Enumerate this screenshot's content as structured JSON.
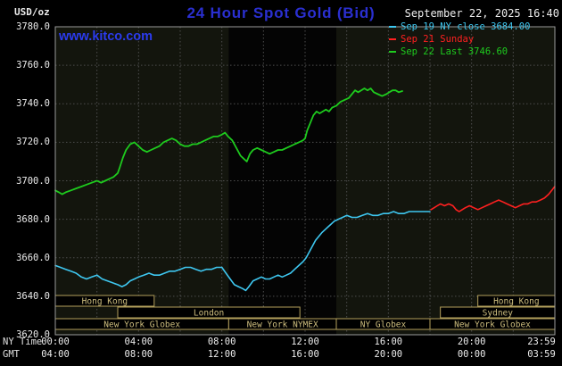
{
  "header": {
    "units_label": "USD/oz",
    "title": "24 Hour Spot Gold (Bid)",
    "title_color": "#2a2fd0",
    "datetime": "September 22, 2025 16:40",
    "watermark": "www.kitco.com",
    "watermark_color": "#2b3bee",
    "legend": [
      {
        "label": "Sep 19 NY close 3684.00",
        "color": "#3ec7f0"
      },
      {
        "label": "Sep 21 Sunday",
        "color": "#ff2020"
      },
      {
        "label": "Sep 22 Last 3746.60",
        "color": "#1ecb1e"
      }
    ]
  },
  "axes": {
    "ny_time_label": "NY Time",
    "gmt_label": "GMT",
    "y_ticks": [
      "3780.0",
      "3760.0",
      "3740.0",
      "3720.0",
      "3700.0",
      "3680.0",
      "3660.0",
      "3640.0",
      "3620.0"
    ],
    "x_ticks_ny": [
      "00:00",
      "04:00",
      "08:00",
      "12:00",
      "16:00",
      "20:00",
      "23:59"
    ],
    "x_ticks_gmt": [
      "04:00",
      "08:00",
      "12:00",
      "16:00",
      "20:00",
      "00:00",
      "03:59"
    ]
  },
  "plot": {
    "bg": "#13150d",
    "band": "#040404",
    "grid": "#4d4d4d",
    "border": "#9a9a9a"
  },
  "sessions": {
    "box_color": "#b3a05c",
    "text_color": "#cdbd7e",
    "rows": [
      [
        {
          "label": "Hong Kong",
          "start": 0,
          "end": 4.75
        },
        {
          "label": "Hong Kong",
          "start": 20.3,
          "end": 24
        }
      ],
      [
        {
          "label": "London",
          "start": 3,
          "end": 11.75
        },
        {
          "label": "Sydney",
          "start": 18.5,
          "end": 24
        }
      ],
      [
        {
          "label": "New York Globex",
          "start": 0,
          "end": 8.33
        },
        {
          "label": "New York NYMEX",
          "start": 8.33,
          "end": 13.5
        },
        {
          "label": "NY Globex",
          "start": 13.5,
          "end": 18
        },
        {
          "label": "New York Globex",
          "start": 18,
          "end": 24
        }
      ]
    ]
  },
  "chart_data": {
    "type": "line",
    "title": "24 Hour Spot Gold (Bid)",
    "xlabel": "NY Time (hours 00:00-23:59)",
    "ylabel": "USD/oz",
    "ylim": [
      3620,
      3780
    ],
    "y_tick_step": 20,
    "x_range_hours": [
      0,
      24
    ],
    "grid": {
      "vertical_step_hours": 2,
      "horizontal_step": 20
    },
    "nymex_band_hours": [
      8.33,
      13.5
    ],
    "legend_position": "top-right",
    "series": [
      {
        "name": "Sep 19 NY close 3684.00",
        "color": "#3ec7f0",
        "width": 1.6,
        "points": [
          [
            0,
            3656
          ],
          [
            0.25,
            3655
          ],
          [
            0.5,
            3654
          ],
          [
            0.75,
            3653
          ],
          [
            1,
            3652
          ],
          [
            1.25,
            3650
          ],
          [
            1.5,
            3649
          ],
          [
            1.75,
            3650
          ],
          [
            2,
            3651
          ],
          [
            2.25,
            3649
          ],
          [
            2.5,
            3648
          ],
          [
            2.75,
            3647
          ],
          [
            3,
            3646
          ],
          [
            3.2,
            3645
          ],
          [
            3.4,
            3646
          ],
          [
            3.6,
            3648
          ],
          [
            3.8,
            3649
          ],
          [
            4,
            3650
          ],
          [
            4.25,
            3651
          ],
          [
            4.5,
            3652
          ],
          [
            4.75,
            3651
          ],
          [
            5,
            3651
          ],
          [
            5.25,
            3652
          ],
          [
            5.5,
            3653
          ],
          [
            5.75,
            3653
          ],
          [
            6,
            3654
          ],
          [
            6.25,
            3655
          ],
          [
            6.5,
            3655
          ],
          [
            6.75,
            3654
          ],
          [
            7,
            3653
          ],
          [
            7.25,
            3654
          ],
          [
            7.5,
            3654
          ],
          [
            7.75,
            3655
          ],
          [
            8,
            3655
          ],
          [
            8.2,
            3652
          ],
          [
            8.4,
            3649
          ],
          [
            8.6,
            3646
          ],
          [
            8.8,
            3645
          ],
          [
            9,
            3644
          ],
          [
            9.15,
            3643
          ],
          [
            9.3,
            3645
          ],
          [
            9.5,
            3648
          ],
          [
            9.7,
            3649
          ],
          [
            9.9,
            3650
          ],
          [
            10.1,
            3649
          ],
          [
            10.3,
            3649
          ],
          [
            10.5,
            3650
          ],
          [
            10.7,
            3651
          ],
          [
            10.9,
            3650
          ],
          [
            11.1,
            3651
          ],
          [
            11.3,
            3652
          ],
          [
            11.5,
            3654
          ],
          [
            11.7,
            3656
          ],
          [
            11.9,
            3658
          ],
          [
            12.05,
            3660
          ],
          [
            12.2,
            3663
          ],
          [
            12.35,
            3666
          ],
          [
            12.5,
            3669
          ],
          [
            12.65,
            3671
          ],
          [
            12.8,
            3673
          ],
          [
            13,
            3675
          ],
          [
            13.2,
            3677
          ],
          [
            13.4,
            3679
          ],
          [
            13.6,
            3680
          ],
          [
            13.8,
            3681
          ],
          [
            14,
            3682
          ],
          [
            14.25,
            3681
          ],
          [
            14.5,
            3681
          ],
          [
            14.75,
            3682
          ],
          [
            15,
            3683
          ],
          [
            15.25,
            3682
          ],
          [
            15.5,
            3682
          ],
          [
            15.75,
            3683
          ],
          [
            16,
            3683
          ],
          [
            16.25,
            3684
          ],
          [
            16.5,
            3683
          ],
          [
            16.75,
            3683
          ],
          [
            17,
            3684
          ],
          [
            17.25,
            3684
          ],
          [
            17.5,
            3684
          ],
          [
            17.75,
            3684
          ],
          [
            18,
            3684
          ]
        ]
      },
      {
        "name": "Sep 21 Sunday",
        "color": "#ff2020",
        "width": 1.6,
        "points": [
          [
            18.05,
            3685
          ],
          [
            18.2,
            3686
          ],
          [
            18.35,
            3687
          ],
          [
            18.5,
            3688
          ],
          [
            18.7,
            3687
          ],
          [
            18.9,
            3688
          ],
          [
            19.1,
            3687
          ],
          [
            19.25,
            3685
          ],
          [
            19.4,
            3684
          ],
          [
            19.55,
            3685
          ],
          [
            19.7,
            3686
          ],
          [
            19.9,
            3687
          ],
          [
            20.1,
            3686
          ],
          [
            20.3,
            3685
          ],
          [
            20.5,
            3686
          ],
          [
            20.7,
            3687
          ],
          [
            20.9,
            3688
          ],
          [
            21.1,
            3689
          ],
          [
            21.3,
            3690
          ],
          [
            21.5,
            3689
          ],
          [
            21.7,
            3688
          ],
          [
            21.9,
            3687
          ],
          [
            22.1,
            3686
          ],
          [
            22.3,
            3687
          ],
          [
            22.5,
            3688
          ],
          [
            22.7,
            3688
          ],
          [
            22.9,
            3689
          ],
          [
            23.1,
            3689
          ],
          [
            23.3,
            3690
          ],
          [
            23.5,
            3691
          ],
          [
            23.7,
            3693
          ],
          [
            23.85,
            3695
          ],
          [
            23.99,
            3697
          ]
        ]
      },
      {
        "name": "Sep 22 Last 3746.60",
        "color": "#1ecb1e",
        "width": 1.8,
        "points": [
          [
            0,
            3695
          ],
          [
            0.17,
            3694
          ],
          [
            0.33,
            3693
          ],
          [
            0.5,
            3694
          ],
          [
            0.75,
            3695
          ],
          [
            1,
            3696
          ],
          [
            1.25,
            3697
          ],
          [
            1.5,
            3698
          ],
          [
            1.75,
            3699
          ],
          [
            2,
            3700
          ],
          [
            2.2,
            3699
          ],
          [
            2.4,
            3700
          ],
          [
            2.6,
            3701
          ],
          [
            2.8,
            3702
          ],
          [
            3,
            3704
          ],
          [
            3.1,
            3707
          ],
          [
            3.25,
            3712
          ],
          [
            3.4,
            3716
          ],
          [
            3.6,
            3719
          ],
          [
            3.8,
            3720
          ],
          [
            4,
            3718
          ],
          [
            4.2,
            3716
          ],
          [
            4.4,
            3715
          ],
          [
            4.6,
            3716
          ],
          [
            4.8,
            3717
          ],
          [
            5,
            3718
          ],
          [
            5.2,
            3720
          ],
          [
            5.4,
            3721
          ],
          [
            5.6,
            3722
          ],
          [
            5.8,
            3721
          ],
          [
            6,
            3719
          ],
          [
            6.2,
            3718
          ],
          [
            6.4,
            3718
          ],
          [
            6.6,
            3719
          ],
          [
            6.8,
            3719
          ],
          [
            7,
            3720
          ],
          [
            7.2,
            3721
          ],
          [
            7.4,
            3722
          ],
          [
            7.6,
            3723
          ],
          [
            7.8,
            3723
          ],
          [
            8,
            3724
          ],
          [
            8.15,
            3725
          ],
          [
            8.3,
            3723
          ],
          [
            8.5,
            3721
          ],
          [
            8.7,
            3717
          ],
          [
            8.9,
            3713
          ],
          [
            9.1,
            3711
          ],
          [
            9.2,
            3710
          ],
          [
            9.35,
            3714
          ],
          [
            9.5,
            3716
          ],
          [
            9.7,
            3717
          ],
          [
            9.9,
            3716
          ],
          [
            10.1,
            3715
          ],
          [
            10.3,
            3714
          ],
          [
            10.5,
            3715
          ],
          [
            10.7,
            3716
          ],
          [
            10.9,
            3716
          ],
          [
            11.1,
            3717
          ],
          [
            11.3,
            3718
          ],
          [
            11.5,
            3719
          ],
          [
            11.7,
            3720
          ],
          [
            11.9,
            3721
          ],
          [
            12,
            3722
          ],
          [
            12.1,
            3726
          ],
          [
            12.25,
            3730
          ],
          [
            12.4,
            3734
          ],
          [
            12.55,
            3736
          ],
          [
            12.7,
            3735
          ],
          [
            12.85,
            3736
          ],
          [
            13,
            3737
          ],
          [
            13.15,
            3736
          ],
          [
            13.3,
            3738
          ],
          [
            13.5,
            3739
          ],
          [
            13.7,
            3741
          ],
          [
            13.9,
            3742
          ],
          [
            14.1,
            3743
          ],
          [
            14.25,
            3745
          ],
          [
            14.4,
            3747
          ],
          [
            14.55,
            3746
          ],
          [
            14.7,
            3747
          ],
          [
            14.85,
            3748
          ],
          [
            15,
            3747
          ],
          [
            15.15,
            3748
          ],
          [
            15.3,
            3746
          ],
          [
            15.5,
            3745
          ],
          [
            15.7,
            3744
          ],
          [
            15.9,
            3745
          ],
          [
            16.05,
            3746
          ],
          [
            16.2,
            3747
          ],
          [
            16.35,
            3747
          ],
          [
            16.5,
            3746
          ],
          [
            16.67,
            3746.6
          ]
        ]
      }
    ]
  }
}
